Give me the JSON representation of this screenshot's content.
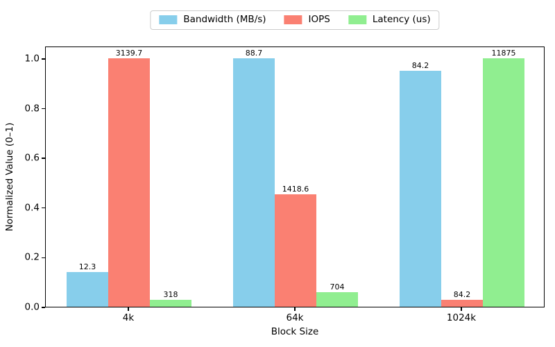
{
  "chart_data": {
    "type": "bar",
    "title": "",
    "xlabel": "Block Size",
    "ylabel": "Normalized Value (0–1)",
    "categories": [
      "4k",
      "64k",
      "1024k"
    ],
    "series": [
      {
        "name": "Bandwidth (MB/s)",
        "color": "#87CEEB",
        "values": [
          12.3,
          88.7,
          84.2
        ],
        "bar_labels": [
          "12.3",
          "88.7",
          "84.2"
        ]
      },
      {
        "name": "IOPS",
        "color": "#FA8072",
        "values": [
          3139.7,
          1418.6,
          84.2
        ],
        "bar_labels": [
          "3139.7",
          "1418.6",
          "84.2"
        ]
      },
      {
        "name": "Latency (us)",
        "color": "#90EE90",
        "values": [
          318,
          704,
          11875
        ],
        "bar_labels": [
          "318",
          "704",
          "11875"
        ]
      }
    ],
    "normalization": "each series divided by its own maximum",
    "ylim": [
      0,
      1.05
    ],
    "yticks": [
      0.0,
      0.2,
      0.4,
      0.6,
      0.8,
      1.0
    ],
    "ytick_labels": [
      "0.0",
      "0.2",
      "0.4",
      "0.6",
      "0.8",
      "1.0"
    ],
    "grid": false,
    "legend_position": "upper center, outside plot",
    "bar_group_offsets": [
      -0.25,
      0,
      0.25
    ],
    "bar_width_data_units": 0.25,
    "axis_color": "#000000",
    "background_color": "#ffffff"
  }
}
